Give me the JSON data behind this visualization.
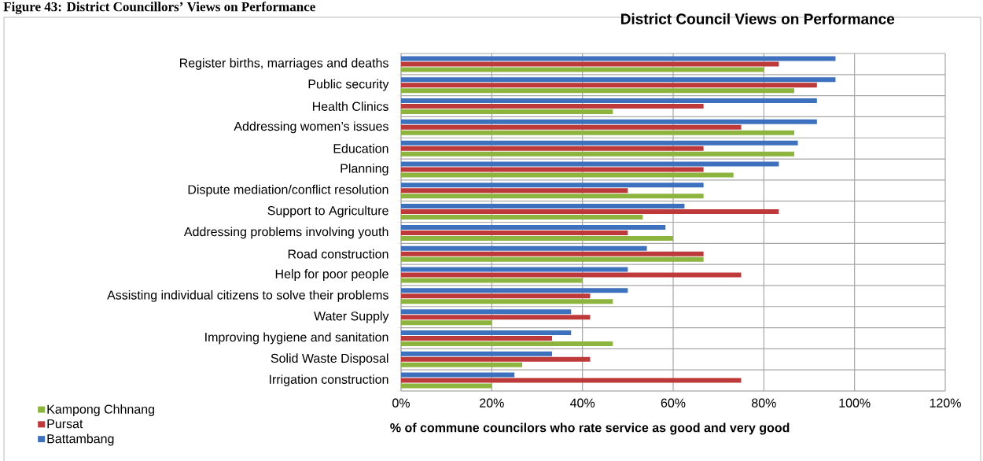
{
  "chart_data": {
    "type": "bar",
    "orientation": "horizontal",
    "title": "District Council Views on Performance",
    "xlabel": "% of commune councilors who rate service as good and very good",
    "annotations": [
      "Figure 43: District Councillors’ Views on Performance"
    ],
    "categories": [
      "Register births, marriages and deaths",
      "Public security",
      "Health Clinics",
      "Addressing women’s issues",
      "Education",
      "Planning",
      "Dispute mediation/conflict resolution",
      "Support to Agriculture",
      "Addressing problems involving youth",
      "Road construction",
      "Help for poor people",
      "Assisting individual citizens to solve their problems",
      "Water Supply",
      "Improving hygiene and sanitation",
      "Solid Waste Disposal",
      "Irrigation construction"
    ],
    "series": [
      {
        "name": "Kampong Chhnang",
        "color": "#8db43e",
        "values": [
          80,
          86.7,
          46.7,
          86.7,
          86.7,
          73.3,
          66.7,
          53.3,
          60,
          66.7,
          40,
          46.7,
          20,
          46.7,
          26.7,
          20
        ]
      },
      {
        "name": "Pursat",
        "color": "#be3a3a",
        "values": [
          83.3,
          91.7,
          66.7,
          75,
          66.7,
          66.7,
          50,
          83.3,
          50,
          66.7,
          75,
          41.7,
          41.7,
          33.3,
          41.7,
          75
        ]
      },
      {
        "name": "Battambang",
        "color": "#3d70bd",
        "values": [
          95.8,
          95.8,
          91.7,
          91.7,
          87.5,
          83.3,
          66.7,
          62.5,
          58.3,
          54.2,
          50,
          50,
          37.5,
          37.5,
          33.3,
          25
        ]
      }
    ],
    "xlim": [
      0,
      120
    ],
    "xticks": [
      {
        "value": 0,
        "label": "0%"
      },
      {
        "value": 20,
        "label": "20%"
      },
      {
        "value": 40,
        "label": "40%"
      },
      {
        "value": 60,
        "label": "60%"
      },
      {
        "value": 80,
        "label": "80%"
      },
      {
        "value": 100,
        "label": "100%"
      },
      {
        "value": 120,
        "label": "120%"
      }
    ],
    "grid": true,
    "legend": "bottom left"
  }
}
